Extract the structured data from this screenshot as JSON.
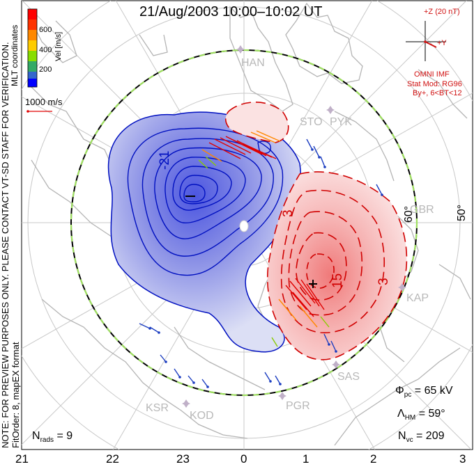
{
  "title": "21/Aug/2003 10:00–10:02 UT",
  "velocity_scale": {
    "label": "Vel [m/s]",
    "ticks": [
      "600",
      "400",
      "200"
    ],
    "colors": [
      "#ff0000",
      "#ff8800",
      "#ffcc00",
      "#88dd00",
      "#33aa66",
      "#3366cc",
      "#0000ff"
    ]
  },
  "coord_system": "MLT coordinates",
  "vector_scale": "1000 m/s",
  "preview_note": "NOTE: FOR PREVIEW PURPOSES ONLY. PLEASE CONTACT VT-SD STAFF FOR VERIFICATION.",
  "fit_order": "FitOrder: 8, mapEX format",
  "imf": {
    "bz_label": "+Z (20 nT)",
    "by_label": "+Y",
    "source": "OMNI IMF",
    "stat_model": "Stat Mod: RG96",
    "condition": "By+, 6<BT<12"
  },
  "radars": [
    "HAN",
    "STO",
    "PYK",
    "GBR",
    "KAP",
    "SAS",
    "PGR",
    "KSR",
    "KOD"
  ],
  "latitude_labels": [
    "60°",
    "50°"
  ],
  "contour_labels": [
    "-21",
    "3",
    "15",
    "3"
  ],
  "stats": {
    "phi_pc_symbol": "Φ",
    "phi_pc_sub": "pc",
    "phi_pc_value": "= 65 kV",
    "lambda_hm_symbol": "Λ",
    "lambda_hm_sub": "HM",
    "lambda_hm_value": "= 59°",
    "n_vc_symbol": "N",
    "n_vc_sub": "vc",
    "n_vc_value": "= 209",
    "n_rads_symbol": "N",
    "n_rads_sub": "rads",
    "n_rads_value": "= 9"
  },
  "mlt_hours": [
    "21",
    "22",
    "23",
    "0",
    "1",
    "2",
    "3"
  ]
}
